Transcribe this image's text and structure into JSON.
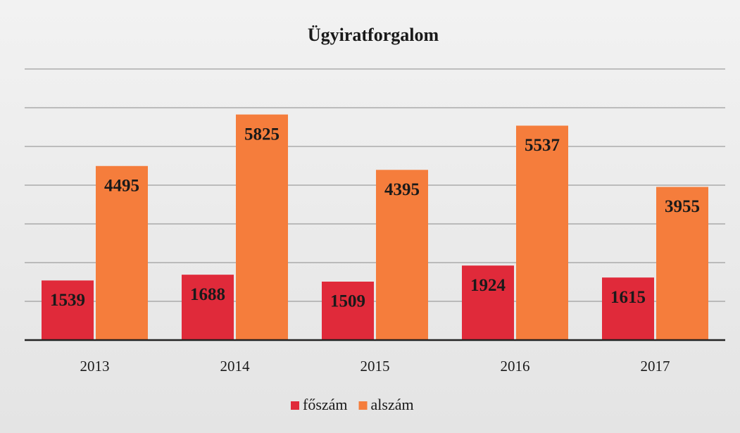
{
  "chart_data": {
    "type": "bar",
    "title": "Ügyiratforgalom",
    "categories": [
      "2013",
      "2014",
      "2015",
      "2016",
      "2017"
    ],
    "series": [
      {
        "name": "főszám",
        "color": "#e02a3a",
        "values": [
          1539,
          1688,
          1509,
          1924,
          1615
        ]
      },
      {
        "name": "alszám",
        "color": "#f57d3c",
        "values": [
          4495,
          5825,
          4395,
          5537,
          3955
        ]
      }
    ],
    "ylim": [
      0,
      7000
    ],
    "yticks": [
      0,
      1000,
      2000,
      3000,
      4000,
      5000,
      6000,
      7000
    ],
    "ytick_labels": false,
    "grid": true,
    "legend": "bottom"
  }
}
